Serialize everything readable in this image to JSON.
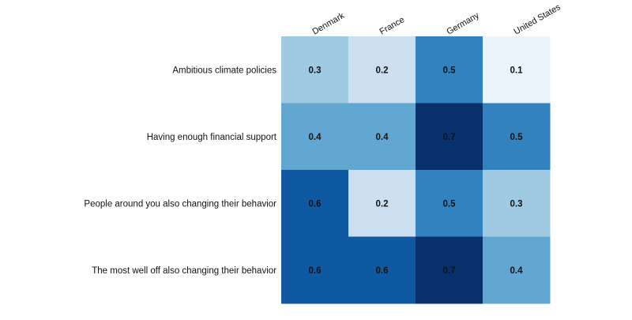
{
  "chart_data": {
    "type": "heatmap",
    "title": "",
    "xlabel": "",
    "ylabel": "",
    "columns": [
      "Denmark",
      "France",
      "Germany",
      "United States"
    ],
    "rows": [
      "Ambitious climate policies",
      "Having enough financial support",
      "People around you also changing their behavior",
      "The most well off also changing their behavior"
    ],
    "values": [
      [
        0.3,
        0.2,
        0.5,
        0.1
      ],
      [
        0.4,
        0.4,
        0.7,
        0.5
      ],
      [
        0.6,
        0.2,
        0.5,
        0.3
      ],
      [
        0.6,
        0.6,
        0.7,
        0.4
      ]
    ],
    "colormap": "Blues",
    "color_low": "#eaf2fa",
    "color_high": "#08306b",
    "value_range": [
      0.1,
      0.7
    ],
    "grid": false,
    "colorbar": false
  }
}
